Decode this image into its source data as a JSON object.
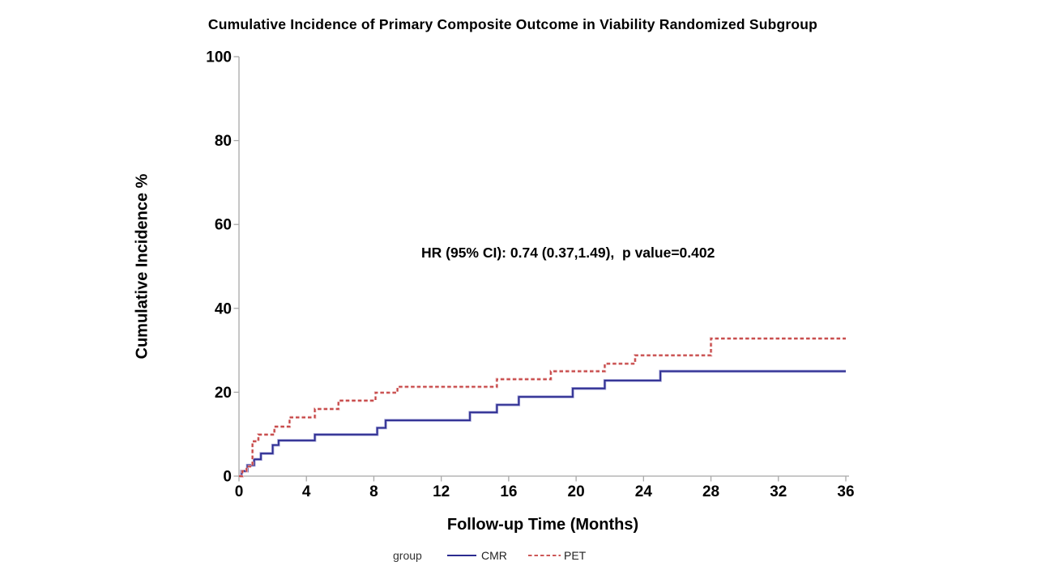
{
  "chart_data": {
    "type": "line",
    "subtype": "step-cumulative-incidence",
    "title": "Cumulative Incidence of Primary Composite Outcome in Viability Randomized Subgroup",
    "xlabel": "Follow-up Time (Months)",
    "ylabel": "Cumulative Incidence %",
    "annotation": "HR (95% CI): 0.74 (0.37,1.49),  p value=0.402",
    "legend_title": "group",
    "xlim": [
      0,
      36
    ],
    "ylim": [
      0,
      100
    ],
    "x_ticks": [
      0,
      4,
      8,
      12,
      16,
      20,
      24,
      28,
      32,
      36
    ],
    "y_ticks": [
      0,
      20,
      40,
      60,
      80,
      100
    ],
    "grid": false,
    "legend_position": "bottom",
    "axis_color": "#a8a8a8",
    "series": [
      {
        "name": "CMR",
        "style": "solid",
        "color": "#2b2b90",
        "halo": "#9a9ad2",
        "points": [
          [
            0,
            0
          ],
          [
            0.15,
            1.2
          ],
          [
            0.5,
            2.6
          ],
          [
            0.9,
            4.0
          ],
          [
            1.3,
            5.4
          ],
          [
            2.0,
            7.4
          ],
          [
            2.35,
            8.5
          ],
          [
            4.5,
            9.9
          ],
          [
            8.2,
            11.5
          ],
          [
            8.7,
            13.3
          ],
          [
            13.7,
            15.2
          ],
          [
            15.3,
            17.0
          ],
          [
            16.6,
            18.9
          ],
          [
            19.8,
            20.9
          ],
          [
            21.7,
            22.8
          ],
          [
            25.0,
            25.0
          ],
          [
            36,
            25.0
          ]
        ]
      },
      {
        "name": "PET",
        "style": "dashed",
        "color": "#c54040",
        "halo": "#e8b6b6",
        "points": [
          [
            0,
            0
          ],
          [
            0.2,
            1.2
          ],
          [
            0.45,
            2.3
          ],
          [
            0.8,
            8.3
          ],
          [
            1.15,
            9.9
          ],
          [
            2.1,
            11.8
          ],
          [
            3.0,
            14.0
          ],
          [
            4.5,
            16.0
          ],
          [
            5.9,
            18.0
          ],
          [
            8.1,
            19.9
          ],
          [
            9.4,
            21.3
          ],
          [
            15.3,
            23.1
          ],
          [
            18.5,
            25.0
          ],
          [
            21.7,
            26.8
          ],
          [
            23.5,
            28.8
          ],
          [
            28.0,
            32.8
          ],
          [
            36,
            32.8
          ]
        ]
      }
    ]
  }
}
